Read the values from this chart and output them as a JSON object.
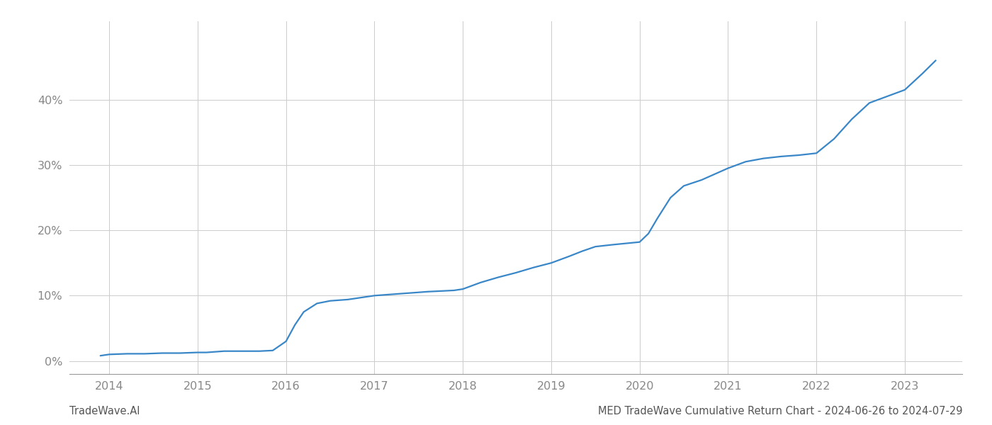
{
  "x_values": [
    2013.9,
    2014.0,
    2014.2,
    2014.4,
    2014.6,
    2014.8,
    2015.0,
    2015.1,
    2015.2,
    2015.3,
    2015.5,
    2015.7,
    2015.85,
    2016.0,
    2016.1,
    2016.2,
    2016.35,
    2016.5,
    2016.7,
    2017.0,
    2017.3,
    2017.6,
    2017.9,
    2018.0,
    2018.2,
    2018.4,
    2018.6,
    2018.8,
    2019.0,
    2019.1,
    2019.2,
    2019.35,
    2019.5,
    2019.7,
    2019.85,
    2020.0,
    2020.1,
    2020.2,
    2020.35,
    2020.5,
    2020.7,
    2021.0,
    2021.2,
    2021.4,
    2021.6,
    2021.8,
    2022.0,
    2022.2,
    2022.4,
    2022.6,
    2022.8,
    2023.0,
    2023.2,
    2023.35
  ],
  "y_values": [
    0.008,
    0.01,
    0.011,
    0.011,
    0.012,
    0.012,
    0.013,
    0.013,
    0.014,
    0.015,
    0.015,
    0.015,
    0.016,
    0.03,
    0.055,
    0.075,
    0.088,
    0.092,
    0.094,
    0.1,
    0.103,
    0.106,
    0.108,
    0.11,
    0.12,
    0.128,
    0.135,
    0.143,
    0.15,
    0.155,
    0.16,
    0.168,
    0.175,
    0.178,
    0.18,
    0.182,
    0.195,
    0.218,
    0.25,
    0.268,
    0.277,
    0.295,
    0.305,
    0.31,
    0.313,
    0.315,
    0.318,
    0.34,
    0.37,
    0.395,
    0.405,
    0.415,
    0.44,
    0.46
  ],
  "line_color": "#3a87c8",
  "line_width": 1.6,
  "background_color": "#ffffff",
  "grid_color": "#cccccc",
  "footer_left": "TradeWave.AI",
  "footer_right": "MED TradeWave Cumulative Return Chart - 2024-06-26 to 2024-07-29",
  "yticks": [
    0.0,
    0.1,
    0.2,
    0.3,
    0.4
  ],
  "ytick_labels": [
    "0%",
    "10%",
    "20%",
    "30%",
    "40%"
  ],
  "xticks": [
    2014,
    2015,
    2016,
    2017,
    2018,
    2019,
    2020,
    2021,
    2022,
    2023
  ],
  "xlim": [
    2013.55,
    2023.65
  ],
  "ylim": [
    -0.02,
    0.52
  ],
  "tick_label_color": "#888888",
  "footer_fontsize": 10.5,
  "tick_fontsize": 11.5
}
